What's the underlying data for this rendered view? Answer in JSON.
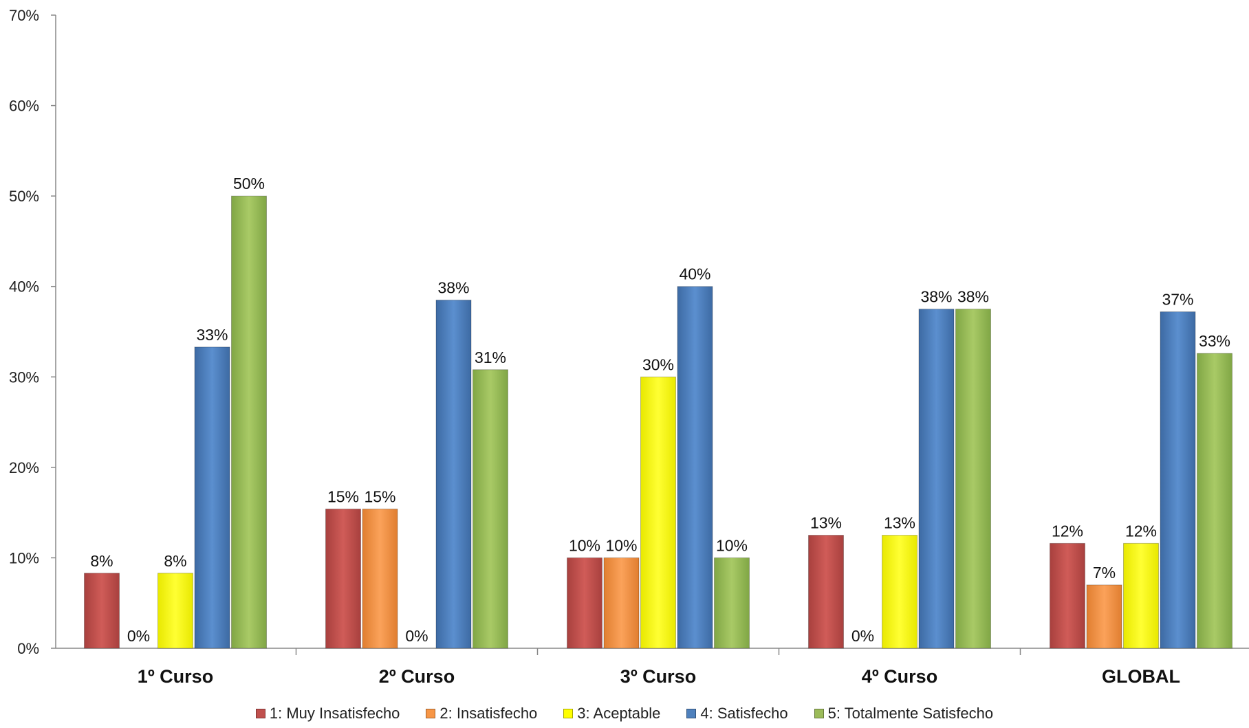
{
  "chart_data": {
    "type": "bar",
    "title": "",
    "xlabel": "",
    "ylabel": "",
    "ylim": [
      0,
      70
    ],
    "y_ticks": [
      "0%",
      "10%",
      "20%",
      "30%",
      "40%",
      "50%",
      "60%",
      "70%"
    ],
    "y_tick_values": [
      0,
      10,
      20,
      30,
      40,
      50,
      60,
      70
    ],
    "grid": false,
    "legend_position": "bottom",
    "categories": [
      "1º Curso",
      "2º Curso",
      "3º Curso",
      "4º Curso",
      "GLOBAL"
    ],
    "series": [
      {
        "name": "1: Muy Insatisfecho",
        "color": "#c0504d",
        "values": [
          8.3,
          15.4,
          10,
          12.5,
          11.6
        ],
        "labels": [
          "8%",
          "15%",
          "10%",
          "13%",
          "12%"
        ]
      },
      {
        "name": "2: Insatisfecho",
        "color": "#f79646",
        "values": [
          0,
          15.4,
          10,
          0,
          7
        ],
        "labels": [
          "0%",
          "15%",
          "10%",
          "0%",
          "7%"
        ]
      },
      {
        "name": "3: Aceptable",
        "color": "#ffff00",
        "values": [
          8.3,
          0,
          30,
          12.5,
          11.6
        ],
        "labels": [
          "8%",
          "0%",
          "30%",
          "13%",
          "12%"
        ]
      },
      {
        "name": "4: Satisfecho",
        "color": "#4f81bd",
        "values": [
          33.3,
          38.5,
          40,
          37.5,
          37.2
        ],
        "labels": [
          "33%",
          "38%",
          "40%",
          "38%",
          "37%"
        ]
      },
      {
        "name": "5: Totalmente Satisfecho",
        "color": "#9bbb59",
        "values": [
          50,
          30.8,
          10,
          37.5,
          32.6
        ],
        "labels": [
          "50%",
          "31%",
          "10%",
          "38%",
          "33%"
        ]
      }
    ]
  }
}
